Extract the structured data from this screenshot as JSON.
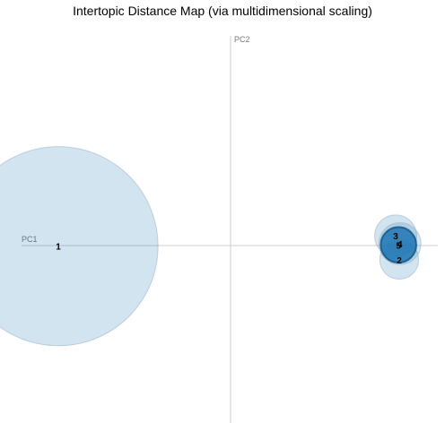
{
  "chart_data": {
    "type": "scatter",
    "title": "Intertopic Distance Map (via multidimensional scaling)",
    "xlabel": "PC1",
    "ylabel": "PC2",
    "xlim": [
      -0.3,
      0.3
    ],
    "ylim": [
      -0.3,
      0.3
    ],
    "grid": false,
    "circle_fill": "#1f77b4",
    "circle_opacity": 0.2,
    "selected_opacity": 0.85,
    "points": [
      {
        "label": "1",
        "x": -0.24,
        "y": -0.001,
        "size": 0.79,
        "selected": false
      },
      {
        "label": "2",
        "x": 0.235,
        "y": -0.022,
        "size": 0.03,
        "selected": false
      },
      {
        "label": "3",
        "x": 0.23,
        "y": 0.015,
        "size": 0.035,
        "selected": false
      },
      {
        "label": "4",
        "x": 0.236,
        "y": 0.003,
        "size": 0.035,
        "selected": false
      },
      {
        "label": "5",
        "x": 0.234,
        "y": 0.001,
        "size": 0.025,
        "selected": true
      }
    ]
  }
}
